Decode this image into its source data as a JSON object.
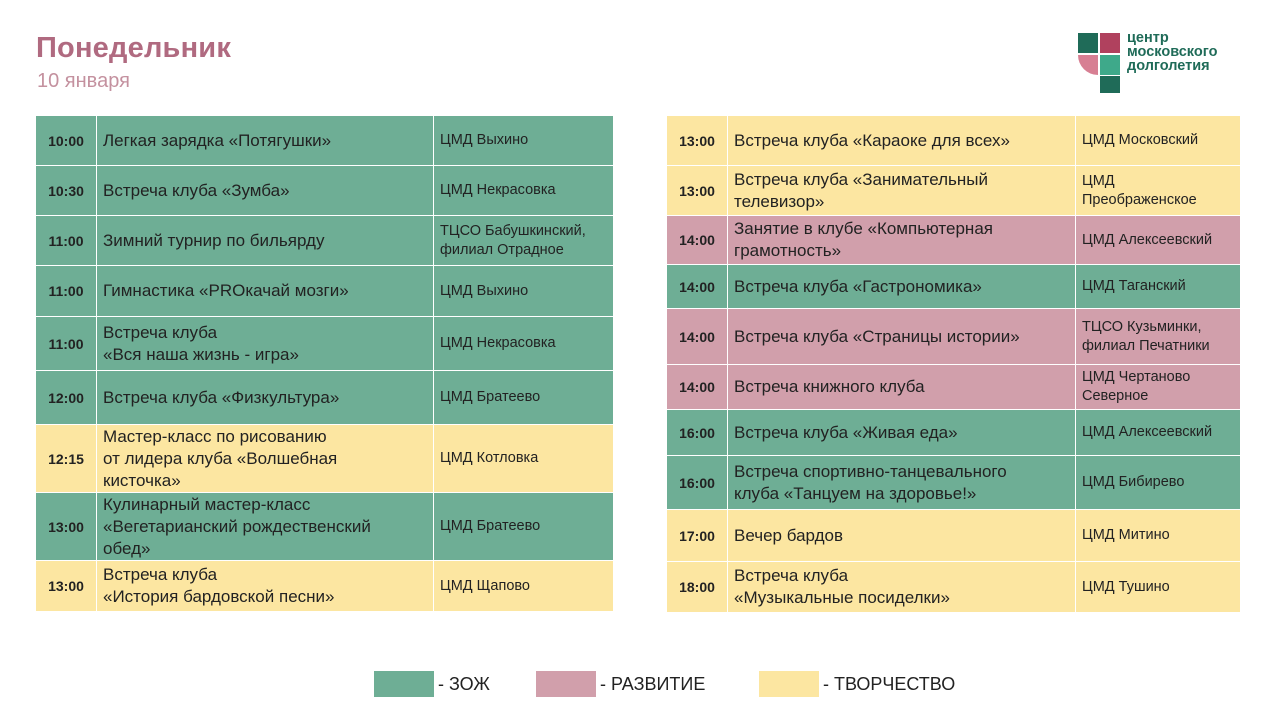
{
  "header": {
    "day": "Понедельник",
    "date": "10 января"
  },
  "logo": {
    "line1": "центр",
    "line2": "московского",
    "line3": "долголетия"
  },
  "legend": [
    {
      "label": "- ЗОЖ",
      "color": "#6eae95"
    },
    {
      "label": "- РАЗВИТИЕ",
      "color": "#d19fab"
    },
    {
      "label": "- ТВОРЧЕСТВО",
      "color": "#fce6a1"
    }
  ],
  "left_schedule": [
    {
      "time": "10:00",
      "event": [
        "Легкая зарядка «Потягушки»"
      ],
      "place": [
        "ЦМД Выхино"
      ],
      "category": "zozh"
    },
    {
      "time": "10:30",
      "event": [
        "Встреча клуба «Зумба»"
      ],
      "place": [
        "ЦМД Некрасовка"
      ],
      "category": "zozh"
    },
    {
      "time": "11:00",
      "event": [
        "Зимний турнир по бильярду"
      ],
      "place": [
        "ТЦСО Бабушкинский,",
        "филиал Отрадное"
      ],
      "category": "zozh"
    },
    {
      "time": "11:00",
      "event": [
        "Гимнастика «PROкачай мозги»"
      ],
      "place": [
        "ЦМД Выхино"
      ],
      "category": "zozh"
    },
    {
      "time": "11:00",
      "event": [
        "Встреча клуба",
        "«Вся наша жизнь - игра»"
      ],
      "place": [
        "ЦМД Некрасовка"
      ],
      "category": "zozh"
    },
    {
      "time": "12:00",
      "event": [
        "Встреча клуба «Физкультура»"
      ],
      "place": [
        "ЦМД Братеево"
      ],
      "category": "zozh"
    },
    {
      "time": "12:15",
      "event": [
        "Мастер-класс по рисованию",
        "от лидера клуба «Волшебная",
        "кисточка»"
      ],
      "place": [
        "ЦМД Котловка"
      ],
      "category": "tvorchestvo"
    },
    {
      "time": "13:00",
      "event": [
        "Кулинарный мастер-класс",
        "«Вегетарианский рождественский",
        "обед»"
      ],
      "place": [
        "ЦМД Братеево"
      ],
      "category": "zozh"
    },
    {
      "time": "13:00",
      "event": [
        "Встреча клуба",
        "«История бардовской песни»"
      ],
      "place": [
        "ЦМД Щапово"
      ],
      "category": "tvorchestvo"
    }
  ],
  "right_schedule": [
    {
      "time": "13:00",
      "event": [
        "Встреча клуба «Караоке для всех»"
      ],
      "place": [
        "ЦМД Московский"
      ],
      "category": "tvorchestvo"
    },
    {
      "time": "13:00",
      "event": [
        "Встреча клуба «Занимательный",
        "телевизор»"
      ],
      "place": [
        "ЦМД",
        "Преображенское"
      ],
      "category": "tvorchestvo"
    },
    {
      "time": "14:00",
      "event": [
        "Занятие в клубе «Компьютерная",
        "грамотность»"
      ],
      "place": [
        "ЦМД Алексеевский"
      ],
      "category": "razvitie"
    },
    {
      "time": "14:00",
      "event": [
        "Встреча клуба «Гастрономика»"
      ],
      "place": [
        "ЦМД Таганский"
      ],
      "category": "zozh"
    },
    {
      "time": "14:00",
      "event": [
        "Встреча клуба «Страницы истории»"
      ],
      "place": [
        "ТЦСО Кузьминки,",
        "филиал Печатники"
      ],
      "category": "razvitie"
    },
    {
      "time": "14:00",
      "event": [
        "Встреча книжного клуба"
      ],
      "place": [
        "ЦМД Чертаново",
        "Северное"
      ],
      "category": "razvitie"
    },
    {
      "time": "16:00",
      "event": [
        "Встреча клуба «Живая еда»"
      ],
      "place": [
        "ЦМД Алексеевский"
      ],
      "category": "zozh"
    },
    {
      "time": "16:00",
      "event": [
        "Встреча спортивно-танцевального",
        "клуба «Танцуем на здоровье!»"
      ],
      "place": [
        "ЦМД Бибирево"
      ],
      "category": "zozh"
    },
    {
      "time": "17:00",
      "event": [
        "Вечер бардов"
      ],
      "place": [
        "ЦМД Митино"
      ],
      "category": "tvorchestvo"
    },
    {
      "time": "18:00",
      "event": [
        "Встреча клуба",
        "«Музыкальные посиделки»"
      ],
      "place": [
        "ЦМД Тушино"
      ],
      "category": "tvorchestvo"
    }
  ]
}
